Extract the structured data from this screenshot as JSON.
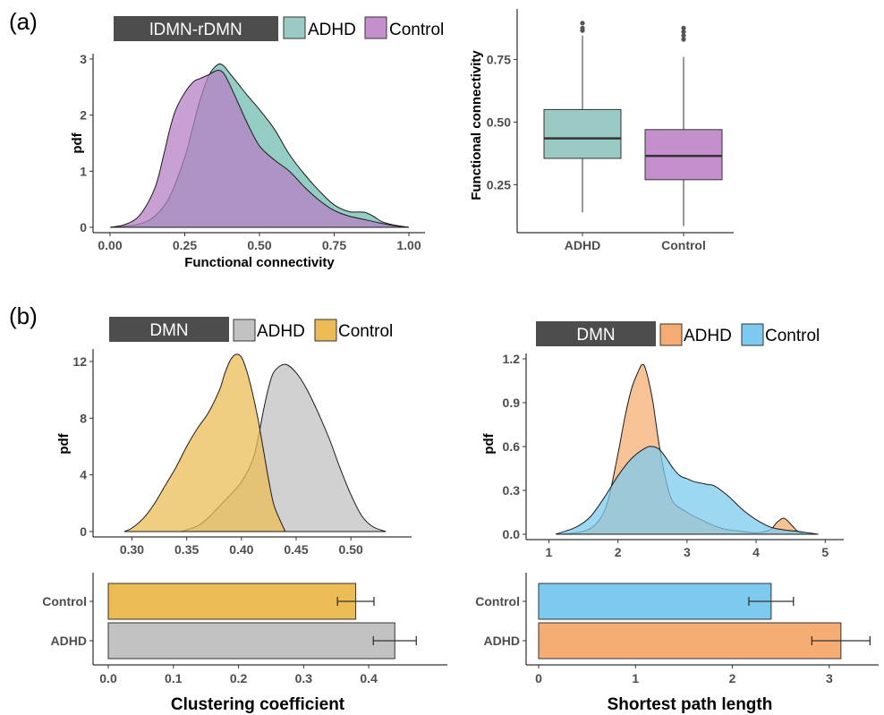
{
  "panel_labels": [
    "(a)",
    "(b)"
  ],
  "chart_data": [
    {
      "id": "a_density",
      "type": "area",
      "title": "lDMN-rDMN",
      "xlabel": "Functional connectivity",
      "ylabel": "pdf",
      "xlim": [
        0.0,
        1.0
      ],
      "ylim": [
        0,
        3
      ],
      "xticks": [
        "0.00",
        "0.25",
        "0.50",
        "0.75",
        "1.00"
      ],
      "yticks": [
        "0",
        "1",
        "2",
        "3"
      ],
      "series": [
        {
          "name": "ADHD",
          "color": "#6fbcb0",
          "x": [
            0.0,
            0.05,
            0.1,
            0.15,
            0.2,
            0.25,
            0.28,
            0.3,
            0.33,
            0.36,
            0.38,
            0.4,
            0.43,
            0.46,
            0.5,
            0.55,
            0.6,
            0.65,
            0.7,
            0.75,
            0.8,
            0.85,
            0.88,
            0.91,
            0.95,
            1.0
          ],
          "y": [
            0.0,
            0.02,
            0.06,
            0.2,
            0.55,
            1.25,
            1.85,
            2.25,
            2.7,
            2.9,
            2.88,
            2.75,
            2.55,
            2.35,
            2.1,
            1.75,
            1.3,
            0.95,
            0.65,
            0.4,
            0.28,
            0.27,
            0.2,
            0.1,
            0.04,
            0.0
          ]
        },
        {
          "name": "Control",
          "color": "#b680c4",
          "x": [
            0.0,
            0.05,
            0.1,
            0.15,
            0.18,
            0.2,
            0.22,
            0.25,
            0.28,
            0.3,
            0.33,
            0.36,
            0.38,
            0.4,
            0.43,
            0.46,
            0.5,
            0.55,
            0.6,
            0.65,
            0.7,
            0.75,
            0.8,
            0.85,
            0.9,
            0.95,
            1.0
          ],
          "y": [
            0.0,
            0.05,
            0.22,
            0.7,
            1.3,
            1.75,
            2.1,
            2.4,
            2.6,
            2.65,
            2.72,
            2.8,
            2.75,
            2.55,
            2.2,
            1.85,
            1.45,
            1.2,
            1.0,
            0.72,
            0.48,
            0.3,
            0.2,
            0.14,
            0.08,
            0.03,
            0.0
          ]
        }
      ]
    },
    {
      "id": "a_box",
      "type": "box",
      "ylabel": "Functional connectivity",
      "ylim": [
        0.08,
        0.93
      ],
      "yticks": [
        "0.25",
        "0.50",
        "0.75"
      ],
      "categories": [
        "ADHD",
        "Control"
      ],
      "boxes": [
        {
          "name": "ADHD",
          "color": "#99cbc4",
          "min": 0.14,
          "q1": 0.355,
          "median": 0.435,
          "q3": 0.55,
          "max": 0.845,
          "outliers": [
            0.865,
            0.875,
            0.895
          ]
        },
        {
          "name": "Control",
          "color": "#c48fcc",
          "min": 0.085,
          "q1": 0.27,
          "median": 0.365,
          "q3": 0.47,
          "max": 0.76,
          "outliers": [
            0.83,
            0.845,
            0.86,
            0.875
          ]
        }
      ]
    },
    {
      "id": "b_cc_density",
      "type": "area",
      "title": "DMN",
      "ylabel": "pdf",
      "xlim": [
        0.28,
        0.535
      ],
      "ylim": [
        0,
        12.5
      ],
      "xticks": [
        "0.30",
        "0.35",
        "0.40",
        "0.45",
        "0.50"
      ],
      "yticks": [
        "0",
        "4",
        "8",
        "12"
      ],
      "series": [
        {
          "name": "ADHD",
          "color": "#c2c2c2",
          "x": [
            0.345,
            0.36,
            0.37,
            0.38,
            0.39,
            0.4,
            0.41,
            0.415,
            0.42,
            0.425,
            0.43,
            0.44,
            0.45,
            0.46,
            0.47,
            0.48,
            0.49,
            0.5,
            0.51,
            0.52,
            0.532
          ],
          "y": [
            0.0,
            0.4,
            1.0,
            1.8,
            2.6,
            3.5,
            5.0,
            6.5,
            8.5,
            10.2,
            11.3,
            11.8,
            11.2,
            10.0,
            8.4,
            6.6,
            4.5,
            2.6,
            1.1,
            0.35,
            0.0
          ]
        },
        {
          "name": "Control",
          "color": "#ebbc55",
          "x": [
            0.293,
            0.3,
            0.31,
            0.32,
            0.33,
            0.34,
            0.35,
            0.36,
            0.37,
            0.38,
            0.385,
            0.39,
            0.395,
            0.4,
            0.405,
            0.41,
            0.415,
            0.42,
            0.425,
            0.43,
            0.44
          ],
          "y": [
            0.0,
            0.25,
            0.9,
            1.9,
            3.2,
            4.5,
            6.0,
            7.3,
            8.4,
            10.0,
            11.2,
            12.1,
            12.5,
            12.3,
            11.3,
            9.8,
            8.0,
            5.8,
            3.6,
            1.8,
            0.0
          ]
        }
      ]
    },
    {
      "id": "b_spl_density",
      "type": "area",
      "title": "DMN",
      "ylabel": "pdf",
      "xlim": [
        0.8,
        5.1
      ],
      "ylim": [
        0,
        1.2
      ],
      "xticks": [
        "1",
        "2",
        "3",
        "4",
        "5"
      ],
      "yticks": [
        "0.0",
        "0.3",
        "0.6",
        "0.9",
        "1.2"
      ],
      "series": [
        {
          "name": "ADHD",
          "color": "#f5ad74",
          "x": [
            1.15,
            1.5,
            1.7,
            1.85,
            2.0,
            2.1,
            2.2,
            2.3,
            2.35,
            2.4,
            2.5,
            2.6,
            2.7,
            2.8,
            3.0,
            3.2,
            3.5,
            3.8,
            4.0,
            4.2,
            4.3,
            4.4,
            4.5,
            4.6,
            4.7
          ],
          "y": [
            0.0,
            0.02,
            0.08,
            0.22,
            0.55,
            0.8,
            1.0,
            1.12,
            1.16,
            1.13,
            0.92,
            0.6,
            0.36,
            0.22,
            0.15,
            0.1,
            0.04,
            0.02,
            0.01,
            0.03,
            0.08,
            0.11,
            0.07,
            0.02,
            0.0
          ]
        },
        {
          "name": "Control",
          "color": "#7ec9ee",
          "x": [
            1.1,
            1.4,
            1.6,
            1.8,
            2.0,
            2.2,
            2.4,
            2.5,
            2.6,
            2.7,
            2.8,
            2.9,
            3.0,
            3.1,
            3.2,
            3.3,
            3.4,
            3.6,
            3.8,
            4.0,
            4.2,
            4.4,
            4.6,
            4.75,
            4.9
          ],
          "y": [
            0.0,
            0.05,
            0.12,
            0.25,
            0.4,
            0.52,
            0.59,
            0.6,
            0.58,
            0.52,
            0.45,
            0.4,
            0.38,
            0.36,
            0.35,
            0.34,
            0.33,
            0.26,
            0.17,
            0.1,
            0.05,
            0.03,
            0.02,
            0.01,
            0.0
          ]
        }
      ]
    },
    {
      "id": "b_cc_bar",
      "type": "bar",
      "orientation": "horizontal",
      "xlabel": "Clustering coefficient",
      "xlim": [
        0,
        0.485
      ],
      "xticks": [
        "0.0",
        "0.1",
        "0.2",
        "0.3",
        "0.4"
      ],
      "categories": [
        "Control",
        "ADHD"
      ],
      "values": [
        0.38,
        0.44
      ],
      "errors": [
        0.028,
        0.033
      ],
      "colors": [
        "#ebbc55",
        "#c2c2c2"
      ]
    },
    {
      "id": "b_spl_bar",
      "type": "bar",
      "orientation": "horizontal",
      "xlabel": "Shortest path length",
      "xlim": [
        0,
        3.5
      ],
      "xticks": [
        "0",
        "1",
        "2",
        "3"
      ],
      "categories": [
        "Control",
        "ADHD"
      ],
      "values": [
        2.4,
        3.12
      ],
      "errors": [
        0.23,
        0.3
      ],
      "colors": [
        "#7ec9ee",
        "#f5ad74"
      ]
    }
  ],
  "legends": {
    "a": {
      "items": [
        {
          "label": "ADHD",
          "color": "#99cbc4"
        },
        {
          "label": "Control",
          "color": "#c48fcc"
        }
      ]
    },
    "b_left": {
      "items": [
        {
          "label": "ADHD",
          "color": "#c2c2c2"
        },
        {
          "label": "Control",
          "color": "#ebbc55"
        }
      ]
    },
    "b_right": {
      "items": [
        {
          "label": "ADHD",
          "color": "#f5ad74"
        },
        {
          "label": "Control",
          "color": "#7ec9ee"
        }
      ]
    }
  }
}
